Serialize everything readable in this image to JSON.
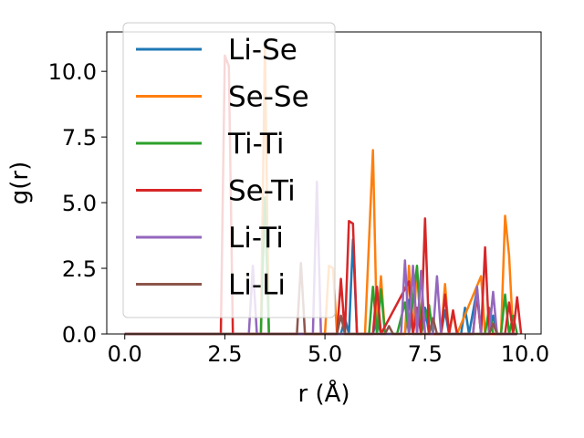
{
  "chart_data": {
    "type": "line",
    "xlabel": "r (Å)",
    "ylabel": "g(r)",
    "xlim": [
      -0.45,
      10.4
    ],
    "ylim": [
      0,
      11.5
    ],
    "xticks": [
      0.0,
      2.5,
      5.0,
      7.5,
      10.0
    ],
    "xtick_labels": [
      "0.0",
      "2.5",
      "5.0",
      "7.5",
      "10.0"
    ],
    "yticks": [
      0.0,
      2.5,
      5.0,
      7.5,
      10.0
    ],
    "ytick_labels": [
      "0.0",
      "2.5",
      "5.0",
      "7.5",
      "10.0"
    ],
    "grid": false,
    "legend_position": "upper-left",
    "series": [
      {
        "name": "Li-Se",
        "color": "#1f77b4",
        "points": [
          [
            0,
            0
          ],
          [
            2.4,
            0
          ],
          [
            5.4,
            0
          ],
          [
            5.5,
            0.6
          ],
          [
            5.6,
            0
          ],
          [
            5.7,
            3.6
          ],
          [
            5.8,
            0
          ],
          [
            6.2,
            0
          ],
          [
            6.3,
            0.6
          ],
          [
            6.4,
            0
          ],
          [
            7.0,
            0
          ],
          [
            7.1,
            1.3
          ],
          [
            7.2,
            0
          ],
          [
            7.4,
            0
          ],
          [
            7.5,
            1.0
          ],
          [
            7.6,
            0
          ],
          [
            7.9,
            0
          ],
          [
            8.0,
            0.9
          ],
          [
            8.1,
            0
          ],
          [
            8.4,
            0
          ],
          [
            8.5,
            1.0
          ],
          [
            8.6,
            0
          ],
          [
            8.8,
            1.7
          ],
          [
            8.9,
            0
          ],
          [
            9.1,
            0
          ],
          [
            9.2,
            0.7
          ],
          [
            9.3,
            0
          ],
          [
            9.8,
            0
          ]
        ]
      },
      {
        "name": "Se-Se",
        "color": "#ff7f0e",
        "points": [
          [
            0,
            0
          ],
          [
            3.4,
            0
          ],
          [
            3.5,
            10.9
          ],
          [
            3.6,
            0
          ],
          [
            5.0,
            0
          ],
          [
            5.1,
            2.6
          ],
          [
            5.2,
            2.5
          ],
          [
            5.3,
            0
          ],
          [
            5.9,
            0
          ],
          [
            6.0,
            0
          ],
          [
            6.2,
            7.0
          ],
          [
            6.3,
            0
          ],
          [
            6.4,
            2.2
          ],
          [
            6.5,
            0
          ],
          [
            7.0,
            0
          ],
          [
            7.1,
            2.6
          ],
          [
            7.2,
            0
          ],
          [
            7.3,
            2.5
          ],
          [
            7.4,
            0
          ],
          [
            7.9,
            0
          ],
          [
            8.0,
            1.9
          ],
          [
            8.1,
            0
          ],
          [
            8.2,
            0.8
          ],
          [
            8.3,
            0
          ],
          [
            8.9,
            2.2
          ],
          [
            9.0,
            0
          ],
          [
            9.4,
            0
          ],
          [
            9.5,
            4.5
          ],
          [
            9.6,
            3.0
          ],
          [
            9.7,
            0
          ],
          [
            9.8,
            0
          ]
        ]
      },
      {
        "name": "Ti-Ti",
        "color": "#2ca02c",
        "points": [
          [
            0,
            0
          ],
          [
            3.4,
            0
          ],
          [
            3.5,
            5.2
          ],
          [
            3.6,
            0
          ],
          [
            6.1,
            0
          ],
          [
            6.2,
            1.8
          ],
          [
            6.3,
            0
          ],
          [
            6.4,
            1.7
          ],
          [
            6.5,
            0
          ],
          [
            6.8,
            0
          ],
          [
            7.0,
            1.2
          ],
          [
            7.1,
            0
          ],
          [
            7.3,
            2.6
          ],
          [
            7.4,
            0
          ],
          [
            7.6,
            1.1
          ],
          [
            7.7,
            0
          ],
          [
            9.0,
            0
          ],
          [
            9.1,
            1.0
          ],
          [
            9.2,
            0
          ],
          [
            9.4,
            0
          ],
          [
            9.5,
            1.5
          ],
          [
            9.6,
            0
          ],
          [
            9.7,
            0.7
          ],
          [
            9.8,
            0
          ]
        ]
      },
      {
        "name": "Se-Ti",
        "color": "#d62728",
        "points": [
          [
            0,
            0
          ],
          [
            2.4,
            0
          ],
          [
            2.5,
            10.6
          ],
          [
            2.6,
            10.2
          ],
          [
            2.7,
            0
          ],
          [
            5.3,
            0
          ],
          [
            5.4,
            2.1
          ],
          [
            5.5,
            0
          ],
          [
            5.6,
            4.3
          ],
          [
            5.7,
            4.2
          ],
          [
            5.8,
            0
          ],
          [
            6.2,
            0
          ],
          [
            6.3,
            1.8
          ],
          [
            6.4,
            0
          ],
          [
            7.1,
            2.0
          ],
          [
            7.2,
            0
          ],
          [
            7.3,
            1.0
          ],
          [
            7.4,
            0
          ],
          [
            7.5,
            4.4
          ],
          [
            7.6,
            0
          ],
          [
            7.9,
            0
          ],
          [
            8.0,
            1.5
          ],
          [
            8.1,
            0
          ],
          [
            8.2,
            0.9
          ],
          [
            8.3,
            0
          ],
          [
            8.7,
            0
          ],
          [
            8.8,
            1.5
          ],
          [
            8.9,
            0
          ],
          [
            9.0,
            3.3
          ],
          [
            9.1,
            0
          ],
          [
            9.5,
            0
          ],
          [
            9.6,
            1.2
          ],
          [
            9.7,
            0
          ],
          [
            9.8,
            1.4
          ],
          [
            9.9,
            0
          ]
        ]
      },
      {
        "name": "Li-Ti",
        "color": "#9467bd",
        "points": [
          [
            0,
            0
          ],
          [
            3.1,
            0
          ],
          [
            3.2,
            2.6
          ],
          [
            3.3,
            0
          ],
          [
            4.7,
            0
          ],
          [
            4.8,
            5.8
          ],
          [
            4.9,
            0
          ],
          [
            6.9,
            0
          ],
          [
            7.0,
            2.8
          ],
          [
            7.1,
            0
          ],
          [
            7.2,
            2.6
          ],
          [
            7.3,
            0
          ],
          [
            7.4,
            2.4
          ],
          [
            7.5,
            0
          ],
          [
            7.7,
            0
          ],
          [
            7.8,
            2.2
          ],
          [
            7.9,
            0
          ],
          [
            8.7,
            0
          ],
          [
            8.8,
            1.8
          ],
          [
            8.9,
            0
          ],
          [
            9.1,
            0
          ],
          [
            9.2,
            1.6
          ],
          [
            9.3,
            0
          ],
          [
            9.8,
            0
          ]
        ]
      },
      {
        "name": "Li-Li",
        "color": "#8c564b",
        "points": [
          [
            0,
            0
          ],
          [
            4.3,
            0
          ],
          [
            4.4,
            2.7
          ],
          [
            4.5,
            0
          ],
          [
            5.3,
            0
          ],
          [
            5.4,
            0.7
          ],
          [
            5.5,
            0
          ],
          [
            6.5,
            0
          ],
          [
            6.6,
            0.3
          ],
          [
            6.7,
            0
          ],
          [
            7.6,
            0
          ],
          [
            7.7,
            0.6
          ],
          [
            7.8,
            0
          ],
          [
            9.1,
            0
          ],
          [
            9.2,
            0.4
          ],
          [
            9.3,
            0
          ],
          [
            9.8,
            0
          ]
        ]
      }
    ]
  }
}
